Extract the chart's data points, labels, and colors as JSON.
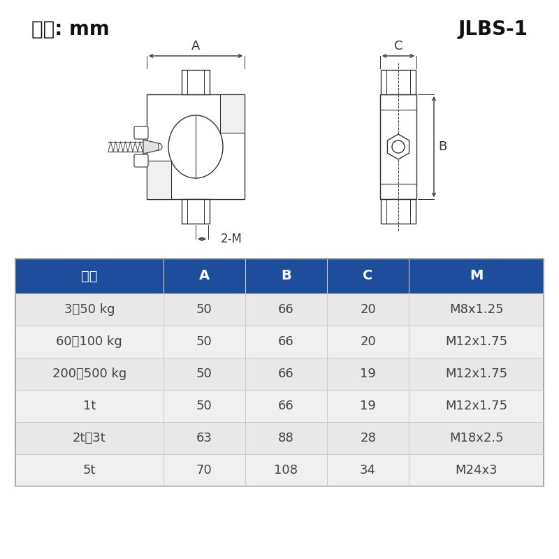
{
  "title_left": "尺寸: mm",
  "title_right": "JLBS-1",
  "header_bg": "#1e4d9b",
  "header_text_color": "#ffffff",
  "row_bg_odd": "#e8e8e8",
  "row_bg_even": "#f0f0f0",
  "row_text_color": "#444444",
  "table_headers": [
    "量程",
    "A",
    "B",
    "C",
    "M"
  ],
  "table_rows": [
    [
      "3～50 kg",
      "50",
      "66",
      "20",
      "M8x1.25"
    ],
    [
      "60～100 kg",
      "50",
      "66",
      "20",
      "M12x1.75"
    ],
    [
      "200～500 kg",
      "50",
      "66",
      "19",
      "M12x1.75"
    ],
    [
      "1t",
      "50",
      "66",
      "19",
      "M12x1.75"
    ],
    [
      "2t、3t",
      "63",
      "88",
      "28",
      "M18x2.5"
    ],
    [
      "5t",
      "70",
      "108",
      "34",
      "M24x3"
    ]
  ],
  "bg_color": "#ffffff",
  "draw_color": "#333333",
  "lw": 1.0
}
